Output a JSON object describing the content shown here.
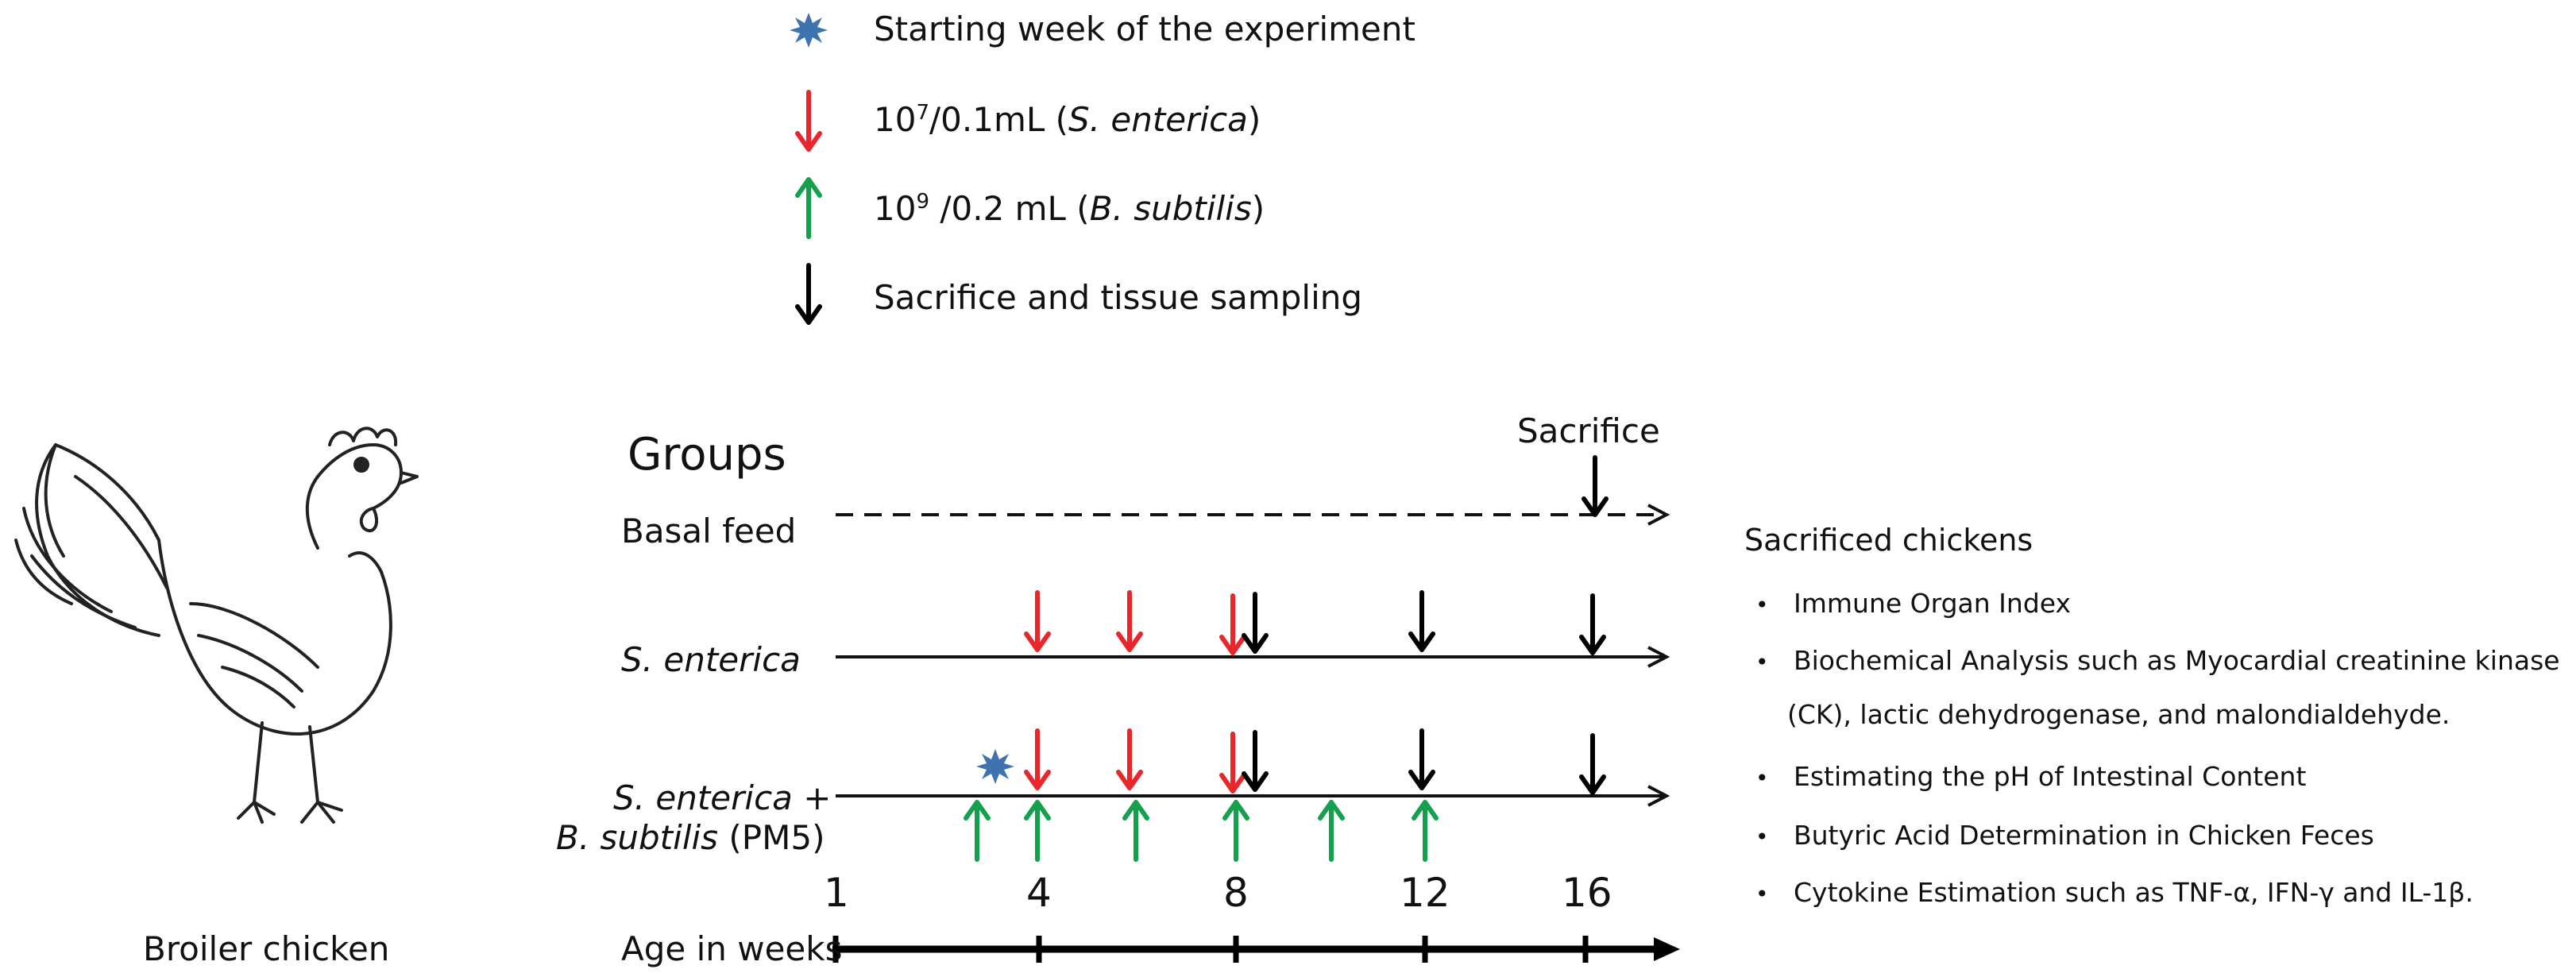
{
  "legend": {
    "start_label": "Starting week of the experiment",
    "salmonella_dose_base": "10",
    "salmonella_dose_exp": "7",
    "salmonella_dose_rest": "/0.1mL (",
    "salmonella_name": "S. enterica",
    "salmonella_close": ")",
    "bsubtilis_dose_base": "10",
    "bsubtilis_dose_exp": "9",
    "bsubtilis_dose_rest": " /0.2 mL (",
    "bsubtilis_name": "B. subtilis",
    "bsubtilis_close": ")",
    "sacrifice_label": "Sacrifice and tissue sampling"
  },
  "colors": {
    "salmonella_arrow": "#e8262b",
    "bsubtilis_arrow": "#14a04c",
    "sacrifice_arrow": "#000000",
    "star": "#3f72b0"
  },
  "timeline": {
    "groups_title": "Groups",
    "sacrifice_title": "Sacrifice",
    "group_basal": "Basal feed",
    "group_salmonella": "S. enterica",
    "group_combo_line1_italic": "S. enterica",
    "group_combo_line1_rest": " +",
    "group_combo_line2_italic": "B. subtilis",
    "group_combo_line2_rest": " (PM5)",
    "axis_title": "Age in weeks",
    "ticks": [
      "1",
      "4",
      "8",
      "12",
      "16"
    ]
  },
  "outcomes": {
    "title": "Sacrificed chickens",
    "bullet": "•",
    "items": [
      "Immune Organ Index",
      "Biochemical Analysis such as Myocardial creatinine kinase",
      "(CK), lactic dehydrogenase, and malondialdehyde.",
      "Estimating the pH of Intestinal Content",
      "Butyric Acid Determination in Chicken Feces",
      "Cytokine Estimation such as TNF-α, IFN-γ and IL-1β."
    ]
  },
  "chicken": {
    "label": "Broiler chicken",
    "icon": "rooster-line-drawing"
  }
}
